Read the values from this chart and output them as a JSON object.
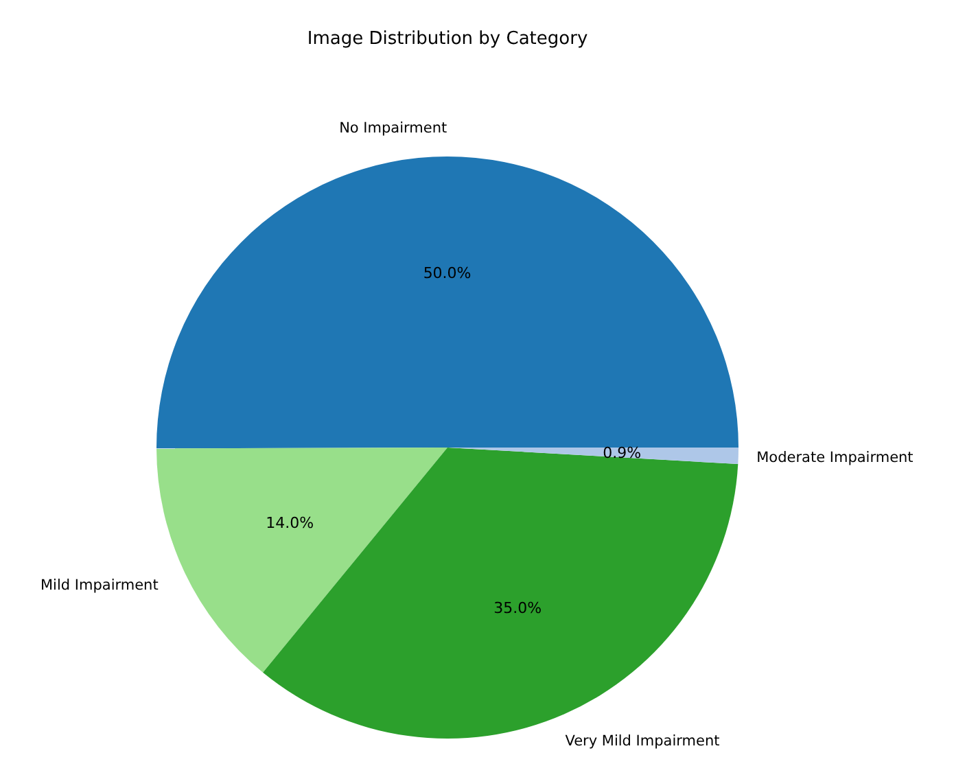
{
  "chart_data": {
    "type": "pie",
    "title": "Image Distribution by Category",
    "categories": [
      "No Impairment",
      "Mild Impairment",
      "Very Mild Impairment",
      "Moderate Impairment"
    ],
    "values": [
      50.0,
      14.0,
      35.0,
      0.9
    ],
    "colors": [
      "#1f77b4",
      "#98df8a",
      "#2ca02c",
      "#aec7e8"
    ],
    "value_labels": [
      "50.0%",
      "14.0%",
      "35.0%",
      "0.9%"
    ]
  }
}
